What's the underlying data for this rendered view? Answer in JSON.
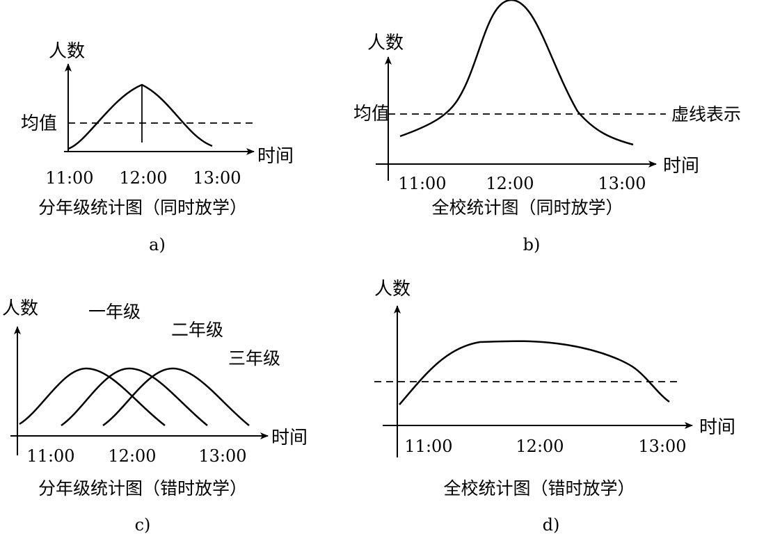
{
  "charts": [
    {
      "id": "a",
      "panel_label": "a)",
      "caption": "分年级统计图（同时放学）",
      "ylabel": "人数",
      "xlabel": "时间",
      "mean_label": "均值",
      "x_ticks": [
        "11:00",
        "12:00",
        "13:00"
      ]
    },
    {
      "id": "b",
      "panel_label": "b)",
      "caption": "全校统计图（同时放学）",
      "ylabel": "人数",
      "xlabel": "时间",
      "mean_label": "均值",
      "dash_note": "虚线表示",
      "x_ticks": [
        "11:00",
        "12:00",
        "13:00"
      ]
    },
    {
      "id": "c",
      "panel_label": "c)",
      "caption": "分年级统计图（错时放学）",
      "ylabel": "人数",
      "xlabel": "时间",
      "x_ticks": [
        "11:00",
        "12:00",
        "13:00"
      ],
      "series_labels": [
        "一年级",
        "二年级",
        "三年级"
      ]
    },
    {
      "id": "d",
      "panel_label": "d)",
      "caption": "全校统计图（错时放学）",
      "ylabel": "人数",
      "xlabel": "时间",
      "x_ticks": [
        "11:00",
        "12:00",
        "13:00"
      ]
    }
  ],
  "chart_data": [
    {
      "type": "line",
      "title": "分年级统计图（同时放学）",
      "xlabel": "时间",
      "ylabel": "人数",
      "x_ticks": [
        "11:00",
        "12:00",
        "13:00"
      ],
      "peak_x": "12:00",
      "mean_line": true,
      "mean_label": "均值",
      "shape": "single bell curve centered at 12:00, mean shown as dashed horizontal line"
    },
    {
      "type": "line",
      "title": "全校统计图（同时放学）",
      "xlabel": "时间",
      "ylabel": "人数",
      "x_ticks": [
        "11:00",
        "12:00",
        "13:00"
      ],
      "peak_x": "12:00",
      "mean_line": true,
      "mean_label": "均值",
      "annotation": "虚线表示",
      "shape": "tall narrow bell curve peaking near 12:00"
    },
    {
      "type": "line",
      "title": "分年级统计图（错时放学）",
      "xlabel": "时间",
      "ylabel": "人数",
      "x_ticks": [
        "11:00",
        "12:00",
        "13:00"
      ],
      "series": [
        {
          "name": "一年级",
          "peak_x": "11:30"
        },
        {
          "name": "二年级",
          "peak_x": "12:00"
        },
        {
          "name": "三年级",
          "peak_x": "12:30"
        }
      ],
      "shape": "three equal-height bell curves staggered by 30 minutes"
    },
    {
      "type": "line",
      "title": "全校统计图（错时放学）",
      "xlabel": "时间",
      "ylabel": "人数",
      "x_ticks": [
        "11:00",
        "12:00",
        "13:00"
      ],
      "mean_line": true,
      "shape": "broad flat-topped curve from 11:00 to 13:00"
    }
  ]
}
